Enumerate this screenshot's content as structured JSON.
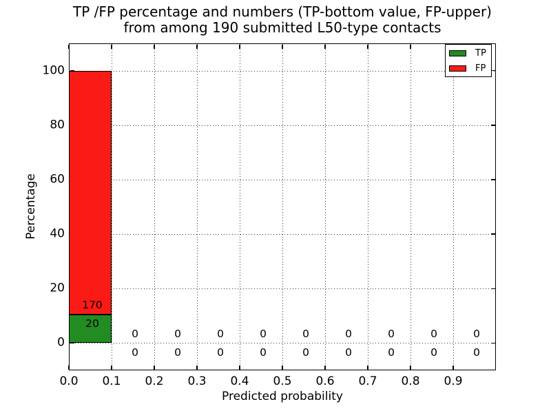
{
  "chart_data": {
    "type": "bar",
    "stacked": true,
    "title_lines": [
      "TP /FP percentage and numbers (TP-bottom value, FP-upper)",
      "from among 190 submitted L50-type contacts"
    ],
    "xlabel": "Predicted probability",
    "ylabel": "Percentage",
    "total": 190,
    "xlim": [
      0.0,
      1.0
    ],
    "ylim": [
      -10,
      110
    ],
    "grid": "dotted",
    "x_ticks": [
      {
        "value": 0.0,
        "label": "0.0"
      },
      {
        "value": 0.1,
        "label": "0.1"
      },
      {
        "value": 0.2,
        "label": "0.2"
      },
      {
        "value": 0.3,
        "label": "0.3"
      },
      {
        "value": 0.4,
        "label": "0.4"
      },
      {
        "value": 0.5,
        "label": "0.5"
      },
      {
        "value": 0.6,
        "label": "0.6"
      },
      {
        "value": 0.7,
        "label": "0.7"
      },
      {
        "value": 0.8,
        "label": "0.8"
      },
      {
        "value": 0.9,
        "label": "0.9"
      }
    ],
    "y_ticks": [
      {
        "value": 0,
        "label": "0"
      },
      {
        "value": 20,
        "label": "20"
      },
      {
        "value": 40,
        "label": "40"
      },
      {
        "value": 60,
        "label": "60"
      },
      {
        "value": 80,
        "label": "80"
      },
      {
        "value": 100,
        "label": "100"
      }
    ],
    "legend": {
      "position": "upper right",
      "entries": [
        {
          "label": "TP",
          "color": "#228c22"
        },
        {
          "label": "FP",
          "color": "#fb1b16"
        }
      ]
    },
    "bins": [
      {
        "x0": 0.0,
        "x1": 0.1,
        "tp": 20,
        "fp": 170
      },
      {
        "x0": 0.1,
        "x1": 0.2,
        "tp": 0,
        "fp": 0
      },
      {
        "x0": 0.2,
        "x1": 0.3,
        "tp": 0,
        "fp": 0
      },
      {
        "x0": 0.3,
        "x1": 0.4,
        "tp": 0,
        "fp": 0
      },
      {
        "x0": 0.4,
        "x1": 0.5,
        "tp": 0,
        "fp": 0
      },
      {
        "x0": 0.5,
        "x1": 0.6,
        "tp": 0,
        "fp": 0
      },
      {
        "x0": 0.6,
        "x1": 0.7,
        "tp": 0,
        "fp": 0
      },
      {
        "x0": 0.7,
        "x1": 0.8,
        "tp": 0,
        "fp": 0
      },
      {
        "x0": 0.8,
        "x1": 0.9,
        "tp": 0,
        "fp": 0
      },
      {
        "x0": 0.9,
        "x1": 1.0,
        "tp": 0,
        "fp": 0
      }
    ],
    "colors": {
      "tp": "#228c22",
      "fp": "#fb1b16",
      "edge": "#000000",
      "grid": "#2e2e2e",
      "text": "#000000",
      "background": "#ffffff"
    }
  }
}
